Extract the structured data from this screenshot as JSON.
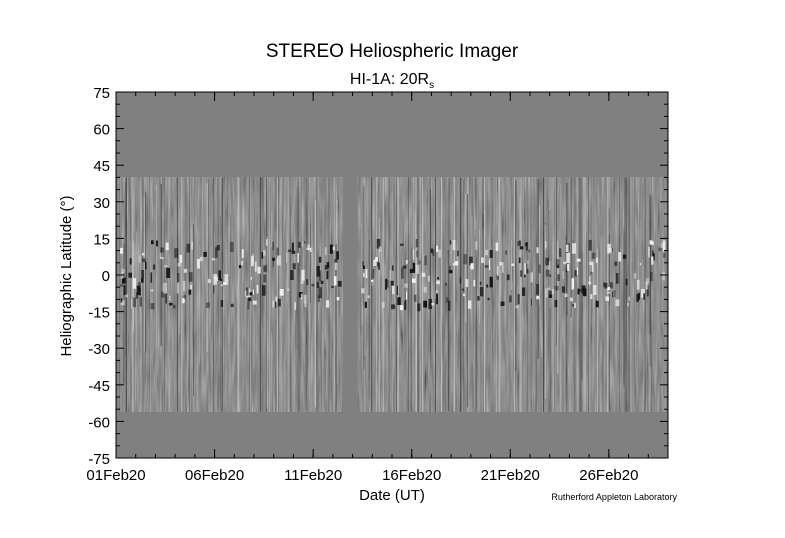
{
  "chart_data": {
    "type": "heatmap",
    "title": "STEREO Heliospheric Imager",
    "subtitle_main": "HI-1A: 20R",
    "subtitle_sub": "s",
    "xlabel": "Date (UT)",
    "ylabel": "Heliographic Latitude (°)",
    "credit": "Rutherford Appleton Laboratory",
    "x_range": [
      "2020-02-01",
      "2020-02-29"
    ],
    "ylim": [
      -75,
      75
    ],
    "x_ticks": [
      {
        "date": "2020-02-01",
        "label": "01Feb20"
      },
      {
        "date": "2020-02-06",
        "label": "06Feb20"
      },
      {
        "date": "2020-02-11",
        "label": "11Feb20"
      },
      {
        "date": "2020-02-16",
        "label": "16Feb20"
      },
      {
        "date": "2020-02-21",
        "label": "21Feb20"
      },
      {
        "date": "2020-02-26",
        "label": "26Feb20"
      }
    ],
    "y_ticks": [
      75,
      60,
      45,
      30,
      15,
      0,
      -15,
      -30,
      -45,
      -60,
      -75
    ],
    "data_latitude_range": [
      -56,
      40
    ],
    "data_gap": [
      "2020-02-12T12:00",
      "2020-02-13T06:00"
    ],
    "background_color": "#808080",
    "grid": false
  }
}
